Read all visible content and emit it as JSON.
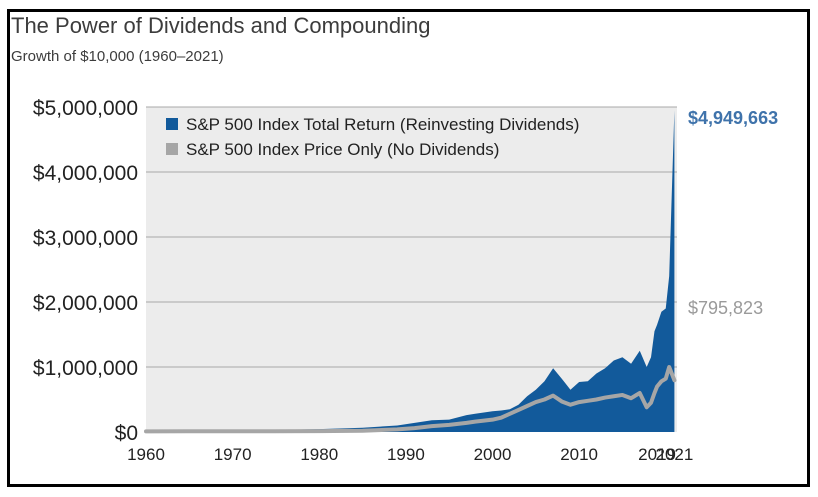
{
  "header": {
    "title": "The Power of Dividends and Compounding",
    "subtitle": "Growth of $10,000 (1960–2021)"
  },
  "chart_data": {
    "type": "area",
    "ylim": [
      0,
      5000000
    ],
    "xlim": [
      1960,
      2021.3
    ],
    "grid": true,
    "legend_placement": "top-left",
    "y_ticks": [
      0,
      1000000,
      2000000,
      3000000,
      4000000,
      5000000
    ],
    "y_tick_labels": [
      "$0",
      "$1,000,000",
      "$2,000,000",
      "$3,000,000",
      "$4,000,000",
      "$5,000,000"
    ],
    "x_ticks": [
      1960,
      1970,
      1980,
      1990,
      2000,
      2010,
      2019,
      2021
    ],
    "x_tick_labels": [
      "1960",
      "1970",
      "1980",
      "1990",
      "2000",
      "2010",
      "2019",
      "2021"
    ],
    "series": [
      {
        "name": "S&P 500 Index Total Return (Reinvesting Dividends)",
        "color": "#125a9b",
        "end_label": "$4,949,663",
        "end_label_color": "#3f73ab",
        "x": [
          1960,
          1965,
          1970,
          1975,
          1980,
          1985,
          1989,
          1991,
          1993,
          1995,
          1997,
          1998,
          2000,
          2001,
          2002,
          2003,
          2004,
          2005,
          2006,
          2007,
          2008,
          2009,
          2010,
          2011,
          2012,
          2013,
          2014,
          2015,
          2016,
          2017,
          2017.8,
          2018.3,
          2018.7,
          2019,
          2019.5,
          2020,
          2020.4,
          2021
        ],
        "y": [
          10000,
          15000,
          22000,
          30000,
          45000,
          65000,
          100000,
          140000,
          180000,
          190000,
          260000,
          280000,
          320000,
          330000,
          350000,
          420000,
          550000,
          650000,
          780000,
          980000,
          820000,
          650000,
          770000,
          780000,
          900000,
          980000,
          1100000,
          1150000,
          1050000,
          1250000,
          1000000,
          1150000,
          1550000,
          1650000,
          1850000,
          1900000,
          2400000,
          4949663
        ]
      },
      {
        "name": "S&P 500 Index Price Only (No Dividends)",
        "color": "#a6a6a6",
        "end_label": "$795,823",
        "end_label_color": "#9a9a9a",
        "x": [
          1960,
          1965,
          1970,
          1975,
          1980,
          1985,
          1989,
          1991,
          1993,
          1995,
          1997,
          1998,
          2000,
          2001,
          2002,
          2003,
          2004,
          2005,
          2006,
          2007,
          2008,
          2009,
          2010,
          2011,
          2012,
          2013,
          2014,
          2015,
          2016,
          2017,
          2017.8,
          2018.3,
          2018.7,
          2019,
          2019.5,
          2020,
          2020.4,
          2021
        ],
        "y": [
          10000,
          11000,
          12000,
          12500,
          14000,
          20000,
          40000,
          60000,
          90000,
          110000,
          140000,
          160000,
          190000,
          220000,
          280000,
          340000,
          400000,
          460000,
          500000,
          560000,
          470000,
          420000,
          460000,
          480000,
          500000,
          530000,
          550000,
          570000,
          520000,
          600000,
          380000,
          450000,
          600000,
          700000,
          780000,
          820000,
          1000000,
          795823
        ]
      }
    ]
  }
}
